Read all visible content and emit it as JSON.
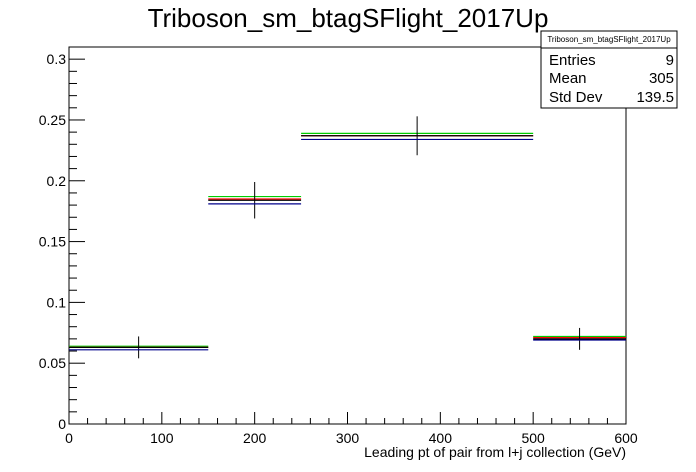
{
  "chart_data": {
    "type": "histogram",
    "title": "Triboson_sm_btagSFlight_2017Up",
    "xlabel": "Leading pt of pair from l+j collection (GeV)",
    "ylabel": "",
    "xlim": [
      0,
      600
    ],
    "ylim": [
      0,
      0.31
    ],
    "x_ticks": [
      0,
      100,
      200,
      300,
      400,
      500,
      600
    ],
    "x_tick_labels": [
      "0",
      "100",
      "200",
      "300",
      "400",
      "500",
      "600"
    ],
    "y_ticks": [
      0,
      0.05,
      0.1,
      0.15,
      0.2,
      0.25,
      0.3
    ],
    "y_tick_labels": [
      "0",
      "0.05",
      "0.1",
      "0.15",
      "0.2",
      "0.25",
      "0.3"
    ],
    "bin_edges": [
      0,
      150,
      250,
      500,
      600
    ],
    "series": [
      {
        "color": "#00cc00",
        "values": [
          0.064,
          0.187,
          0.239,
          0.072
        ]
      },
      {
        "color": "#ff0000",
        "values": [
          0.063,
          0.185,
          0.237,
          0.071
        ]
      },
      {
        "color": "#000000",
        "values": [
          0.063,
          0.184,
          0.237,
          0.07
        ],
        "errors": [
          0.009,
          0.015,
          0.016,
          0.009
        ]
      },
      {
        "color": "#00008b",
        "values": [
          0.061,
          0.181,
          0.234,
          0.069
        ]
      }
    ],
    "stats": {
      "name": "Triboson_sm_btagSFlight_2017Up",
      "rows": [
        {
          "label": "Entries",
          "value": "9"
        },
        {
          "label": "Mean",
          "value": "305"
        },
        {
          "label": "Std Dev",
          "value": "139.5"
        }
      ]
    },
    "grid": false,
    "legend": "none"
  }
}
